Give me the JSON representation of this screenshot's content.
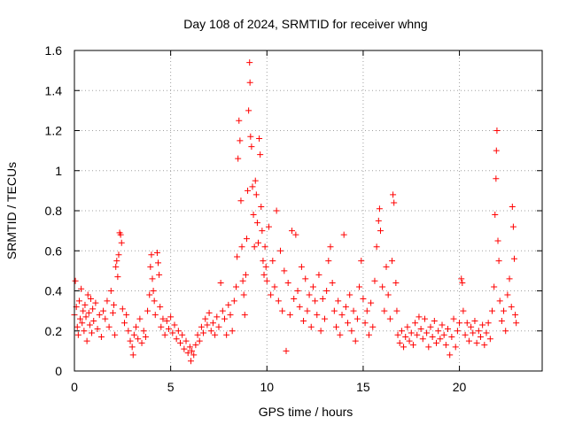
{
  "chart_data": {
    "type": "scatter",
    "title": "Day 108 of 2024, SRMTID for receiver whng",
    "xlabel": "GPS time / hours",
    "ylabel": "SRMTID / TECUs",
    "xlim": [
      0,
      24.3
    ],
    "ylim": [
      0,
      1.6
    ],
    "x_ticks": [
      0,
      5,
      10,
      15,
      20
    ],
    "x_tick_labels": [
      "0",
      "5",
      "10",
      "15",
      "20"
    ],
    "y_ticks": [
      0,
      0.2,
      0.4,
      0.6,
      0.8,
      1.0,
      1.2,
      1.4,
      1.6
    ],
    "y_tick_labels": [
      "0",
      "0.2",
      "0.4",
      "0.6",
      "0.8",
      "1",
      "1.2",
      "1.4",
      "1.6"
    ],
    "grid": true,
    "marker": "+",
    "marker_color": "#ff0000",
    "series": [
      {
        "name": "SRMTID",
        "points": [
          [
            0.0,
            0.28
          ],
          [
            0.05,
            0.45
          ],
          [
            0.1,
            0.32
          ],
          [
            0.15,
            0.22
          ],
          [
            0.2,
            0.18
          ],
          [
            0.25,
            0.35
          ],
          [
            0.3,
            0.26
          ],
          [
            0.35,
            0.41
          ],
          [
            0.4,
            0.24
          ],
          [
            0.45,
            0.3
          ],
          [
            0.5,
            0.2
          ],
          [
            0.55,
            0.33
          ],
          [
            0.6,
            0.27
          ],
          [
            0.65,
            0.15
          ],
          [
            0.7,
            0.38
          ],
          [
            0.75,
            0.29
          ],
          [
            0.8,
            0.23
          ],
          [
            0.85,
            0.36
          ],
          [
            0.9,
            0.19
          ],
          [
            0.95,
            0.31
          ],
          [
            1.0,
            0.25
          ],
          [
            1.1,
            0.34
          ],
          [
            1.2,
            0.21
          ],
          [
            1.3,
            0.28
          ],
          [
            1.4,
            0.17
          ],
          [
            1.5,
            0.3
          ],
          [
            1.6,
            0.26
          ],
          [
            1.7,
            0.35
          ],
          [
            1.8,
            0.22
          ],
          [
            1.9,
            0.4
          ],
          [
            2.0,
            0.29
          ],
          [
            2.05,
            0.33
          ],
          [
            2.1,
            0.18
          ],
          [
            2.15,
            0.52
          ],
          [
            2.2,
            0.55
          ],
          [
            2.25,
            0.47
          ],
          [
            2.3,
            0.58
          ],
          [
            2.35,
            0.69
          ],
          [
            2.4,
            0.68
          ],
          [
            2.45,
            0.64
          ],
          [
            2.5,
            0.31
          ],
          [
            2.6,
            0.24
          ],
          [
            2.7,
            0.28
          ],
          [
            2.8,
            0.2
          ],
          [
            2.9,
            0.15
          ],
          [
            3.0,
            0.12
          ],
          [
            3.05,
            0.08
          ],
          [
            3.1,
            0.18
          ],
          [
            3.2,
            0.22
          ],
          [
            3.3,
            0.16
          ],
          [
            3.4,
            0.26
          ],
          [
            3.5,
            0.14
          ],
          [
            3.6,
            0.2
          ],
          [
            3.7,
            0.17
          ],
          [
            3.8,
            0.3
          ],
          [
            3.9,
            0.38
          ],
          [
            3.95,
            0.52
          ],
          [
            4.0,
            0.58
          ],
          [
            4.05,
            0.46
          ],
          [
            4.1,
            0.4
          ],
          [
            4.15,
            0.35
          ],
          [
            4.2,
            0.28
          ],
          [
            4.3,
            0.59
          ],
          [
            4.35,
            0.54
          ],
          [
            4.4,
            0.48
          ],
          [
            4.45,
            0.32
          ],
          [
            4.5,
            0.22
          ],
          [
            4.6,
            0.26
          ],
          [
            4.7,
            0.18
          ],
          [
            4.8,
            0.25
          ],
          [
            4.9,
            0.21
          ],
          [
            5.0,
            0.27
          ],
          [
            5.1,
            0.19
          ],
          [
            5.2,
            0.23
          ],
          [
            5.3,
            0.16
          ],
          [
            5.4,
            0.2
          ],
          [
            5.5,
            0.14
          ],
          [
            5.6,
            0.18
          ],
          [
            5.7,
            0.11
          ],
          [
            5.8,
            0.15
          ],
          [
            5.9,
            0.09
          ],
          [
            6.0,
            0.12
          ],
          [
            6.05,
            0.05
          ],
          [
            6.1,
            0.1
          ],
          [
            6.2,
            0.08
          ],
          [
            6.3,
            0.13
          ],
          [
            6.4,
            0.18
          ],
          [
            6.5,
            0.15
          ],
          [
            6.6,
            0.22
          ],
          [
            6.7,
            0.19
          ],
          [
            6.8,
            0.26
          ],
          [
            6.9,
            0.23
          ],
          [
            7.0,
            0.29
          ],
          [
            7.1,
            0.2
          ],
          [
            7.2,
            0.24
          ],
          [
            7.3,
            0.18
          ],
          [
            7.4,
            0.27
          ],
          [
            7.5,
            0.22
          ],
          [
            7.6,
            0.44
          ],
          [
            7.7,
            0.3
          ],
          [
            7.8,
            0.26
          ],
          [
            7.9,
            0.18
          ],
          [
            8.0,
            0.33
          ],
          [
            8.1,
            0.28
          ],
          [
            8.2,
            0.2
          ],
          [
            8.3,
            0.35
          ],
          [
            8.4,
            0.42
          ],
          [
            8.45,
            0.57
          ],
          [
            8.5,
            1.06
          ],
          [
            8.55,
            1.25
          ],
          [
            8.6,
            1.15
          ],
          [
            8.65,
            0.85
          ],
          [
            8.7,
            0.62
          ],
          [
            8.75,
            0.45
          ],
          [
            8.8,
            0.38
          ],
          [
            8.85,
            0.28
          ],
          [
            8.9,
            0.48
          ],
          [
            8.95,
            0.66
          ],
          [
            9.0,
            0.9
          ],
          [
            9.05,
            1.3
          ],
          [
            9.1,
            1.54
          ],
          [
            9.12,
            1.44
          ],
          [
            9.15,
            1.17
          ],
          [
            9.2,
            1.12
          ],
          [
            9.25,
            0.92
          ],
          [
            9.3,
            0.78
          ],
          [
            9.35,
            0.62
          ],
          [
            9.4,
            0.95
          ],
          [
            9.45,
            0.88
          ],
          [
            9.5,
            0.74
          ],
          [
            9.55,
            0.64
          ],
          [
            9.6,
            1.16
          ],
          [
            9.65,
            1.08
          ],
          [
            9.7,
            0.82
          ],
          [
            9.75,
            0.7
          ],
          [
            9.8,
            0.55
          ],
          [
            9.85,
            0.48
          ],
          [
            9.9,
            0.62
          ],
          [
            9.95,
            0.52
          ],
          [
            10.0,
            0.45
          ],
          [
            10.1,
            0.72
          ],
          [
            10.2,
            0.38
          ],
          [
            10.3,
            0.55
          ],
          [
            10.4,
            0.42
          ],
          [
            10.5,
            0.8
          ],
          [
            10.6,
            0.35
          ],
          [
            10.7,
            0.6
          ],
          [
            10.8,
            0.3
          ],
          [
            10.9,
            0.5
          ],
          [
            11.0,
            0.1
          ],
          [
            11.1,
            0.44
          ],
          [
            11.2,
            0.28
          ],
          [
            11.3,
            0.7
          ],
          [
            11.4,
            0.36
          ],
          [
            11.5,
            0.68
          ],
          [
            11.6,
            0.4
          ],
          [
            11.7,
            0.32
          ],
          [
            11.8,
            0.52
          ],
          [
            11.9,
            0.25
          ],
          [
            12.0,
            0.46
          ],
          [
            12.1,
            0.3
          ],
          [
            12.2,
            0.38
          ],
          [
            12.3,
            0.22
          ],
          [
            12.4,
            0.42
          ],
          [
            12.5,
            0.35
          ],
          [
            12.6,
            0.28
          ],
          [
            12.7,
            0.48
          ],
          [
            12.8,
            0.2
          ],
          [
            12.9,
            0.36
          ],
          [
            13.0,
            0.26
          ],
          [
            13.1,
            0.4
          ],
          [
            13.2,
            0.55
          ],
          [
            13.3,
            0.62
          ],
          [
            13.4,
            0.44
          ],
          [
            13.5,
            0.3
          ],
          [
            13.6,
            0.22
          ],
          [
            13.7,
            0.35
          ],
          [
            13.8,
            0.18
          ],
          [
            13.9,
            0.28
          ],
          [
            14.0,
            0.68
          ],
          [
            14.1,
            0.32
          ],
          [
            14.2,
            0.24
          ],
          [
            14.3,
            0.38
          ],
          [
            14.4,
            0.2
          ],
          [
            14.5,
            0.3
          ],
          [
            14.6,
            0.15
          ],
          [
            14.7,
            0.26
          ],
          [
            14.8,
            0.42
          ],
          [
            14.9,
            0.55
          ],
          [
            15.0,
            0.36
          ],
          [
            15.1,
            0.24
          ],
          [
            15.2,
            0.3
          ],
          [
            15.3,
            0.18
          ],
          [
            15.4,
            0.34
          ],
          [
            15.5,
            0.22
          ],
          [
            15.6,
            0.45
          ],
          [
            15.7,
            0.62
          ],
          [
            15.8,
            0.75
          ],
          [
            15.85,
            0.81
          ],
          [
            15.9,
            0.7
          ],
          [
            16.0,
            0.42
          ],
          [
            16.1,
            0.3
          ],
          [
            16.2,
            0.52
          ],
          [
            16.3,
            0.38
          ],
          [
            16.4,
            0.26
          ],
          [
            16.5,
            0.55
          ],
          [
            16.55,
            0.88
          ],
          [
            16.6,
            0.84
          ],
          [
            16.7,
            0.44
          ],
          [
            16.75,
            0.3
          ],
          [
            16.8,
            0.18
          ],
          [
            16.9,
            0.14
          ],
          [
            17.0,
            0.2
          ],
          [
            17.1,
            0.12
          ],
          [
            17.2,
            0.17
          ],
          [
            17.3,
            0.22
          ],
          [
            17.4,
            0.15
          ],
          [
            17.5,
            0.19
          ],
          [
            17.6,
            0.13
          ],
          [
            17.7,
            0.24
          ],
          [
            17.8,
            0.18
          ],
          [
            17.9,
            0.27
          ],
          [
            18.0,
            0.21
          ],
          [
            18.1,
            0.16
          ],
          [
            18.2,
            0.26
          ],
          [
            18.3,
            0.19
          ],
          [
            18.4,
            0.12
          ],
          [
            18.5,
            0.22
          ],
          [
            18.6,
            0.17
          ],
          [
            18.7,
            0.25
          ],
          [
            18.8,
            0.14
          ],
          [
            18.9,
            0.2
          ],
          [
            19.0,
            0.16
          ],
          [
            19.1,
            0.23
          ],
          [
            19.2,
            0.18
          ],
          [
            19.3,
            0.13
          ],
          [
            19.4,
            0.21
          ],
          [
            19.5,
            0.08
          ],
          [
            19.6,
            0.17
          ],
          [
            19.7,
            0.26
          ],
          [
            19.8,
            0.12
          ],
          [
            19.9,
            0.2
          ],
          [
            20.0,
            0.24
          ],
          [
            20.1,
            0.46
          ],
          [
            20.15,
            0.44
          ],
          [
            20.2,
            0.3
          ],
          [
            20.3,
            0.18
          ],
          [
            20.4,
            0.24
          ],
          [
            20.5,
            0.15
          ],
          [
            20.6,
            0.22
          ],
          [
            20.7,
            0.19
          ],
          [
            20.8,
            0.25
          ],
          [
            20.9,
            0.14
          ],
          [
            21.0,
            0.2
          ],
          [
            21.1,
            0.17
          ],
          [
            21.2,
            0.23
          ],
          [
            21.3,
            0.13
          ],
          [
            21.4,
            0.19
          ],
          [
            21.5,
            0.24
          ],
          [
            21.6,
            0.16
          ],
          [
            21.7,
            0.3
          ],
          [
            21.8,
            0.42
          ],
          [
            21.85,
            0.78
          ],
          [
            21.9,
            0.96
          ],
          [
            21.92,
            1.1
          ],
          [
            21.95,
            1.2
          ],
          [
            22.0,
            0.65
          ],
          [
            22.05,
            0.55
          ],
          [
            22.1,
            0.35
          ],
          [
            22.2,
            0.25
          ],
          [
            22.3,
            0.3
          ],
          [
            22.4,
            0.2
          ],
          [
            22.5,
            0.38
          ],
          [
            22.6,
            0.46
          ],
          [
            22.7,
            0.32
          ],
          [
            22.75,
            0.82
          ],
          [
            22.8,
            0.72
          ],
          [
            22.85,
            0.56
          ],
          [
            22.9,
            0.28
          ],
          [
            22.95,
            0.24
          ]
        ]
      }
    ]
  }
}
